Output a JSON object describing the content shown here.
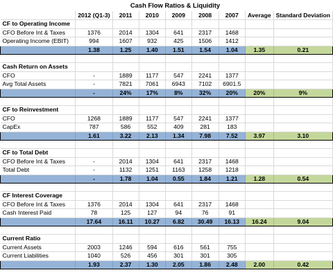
{
  "title": "Cash Flow Ratios & Liquidity",
  "columns": [
    "2012 (Q1-3)",
    "2011",
    "2010",
    "2009",
    "2008",
    "2007",
    "Average",
    "Standard Deviation"
  ],
  "colors": {
    "ratio_fill": "#95b3d7",
    "stats_fill": "#c4d79b",
    "grid": "#d9d9d9"
  },
  "sections": [
    {
      "heading": "CF to Operating Income",
      "rows": [
        {
          "label": "CFO Before Int & Taxes",
          "values": [
            "1376",
            "2014",
            "1304",
            "641",
            "2317",
            "1468"
          ]
        },
        {
          "label": "Operating Income (EBIT)",
          "values": [
            "994",
            "1607",
            "932",
            "425",
            "1506",
            "1412"
          ]
        }
      ],
      "result": {
        "values": [
          "1.38",
          "1.25",
          "1.40",
          "1.51",
          "1.54",
          "1.04"
        ],
        "average": "1.35",
        "stdev": "0.21"
      }
    },
    {
      "heading": "Cash Return on Assets",
      "rows": [
        {
          "label": "CFO",
          "values": [
            "-",
            "1889",
            "1177",
            "547",
            "2241",
            "1377"
          ]
        },
        {
          "label": "Avg Total Assets",
          "values": [
            "-",
            "7821",
            "7061",
            "6943",
            "7102",
            "6901.5"
          ]
        }
      ],
      "result": {
        "values": [
          "-",
          "24%",
          "17%",
          "8%",
          "32%",
          "20%"
        ],
        "average": "20%",
        "stdev": "9%"
      }
    },
    {
      "heading": "CF to Reinvestment",
      "rows": [
        {
          "label": "CFO",
          "values": [
            "1268",
            "1889",
            "1177",
            "547",
            "2241",
            "1377"
          ]
        },
        {
          "label": "CapEx",
          "values": [
            "787",
            "586",
            "552",
            "409",
            "281",
            "183"
          ]
        }
      ],
      "result": {
        "values": [
          "1.61",
          "3.22",
          "2.13",
          "1.34",
          "7.98",
          "7.52"
        ],
        "average": "3.97",
        "stdev": "3.10"
      }
    },
    {
      "heading": "CF to Total Debt",
      "rows": [
        {
          "label": "CFO Before Int & Taxes",
          "values": [
            "-",
            "2014",
            "1304",
            "641",
            "2317",
            "1468"
          ]
        },
        {
          "label": "Total Debt",
          "values": [
            "-",
            "1132",
            "1251",
            "1163",
            "1258",
            "1218"
          ]
        }
      ],
      "result": {
        "values": [
          "-",
          "1.78",
          "1.04",
          "0.55",
          "1.84",
          "1.21"
        ],
        "average": "1.28",
        "stdev": "0.54"
      }
    },
    {
      "heading": "CF Interest Coverage",
      "rows": [
        {
          "label": "CFO Before Int & Taxes",
          "values": [
            "1376",
            "2014",
            "1304",
            "641",
            "2317",
            "1468"
          ]
        },
        {
          "label": "Cash Interest Paid",
          "values": [
            "78",
            "125",
            "127",
            "94",
            "76",
            "91"
          ]
        }
      ],
      "result": {
        "values": [
          "17.64",
          "16.11",
          "10.27",
          "6.82",
          "30.49",
          "16.13"
        ],
        "average": "16.24",
        "stdev": "9.04"
      }
    },
    {
      "heading": "Current Ratio",
      "rows": [
        {
          "label": "Current Assets",
          "values": [
            "2003",
            "1246",
            "594",
            "616",
            "561",
            "755"
          ]
        },
        {
          "label": "Current Liabilities",
          "values": [
            "1040",
            "526",
            "456",
            "301",
            "301",
            "305"
          ]
        }
      ],
      "result": {
        "values": [
          "1.93",
          "2.37",
          "1.30",
          "2.05",
          "1.86",
          "2.48"
        ],
        "average": "2.00",
        "stdev": "0.42"
      }
    }
  ]
}
